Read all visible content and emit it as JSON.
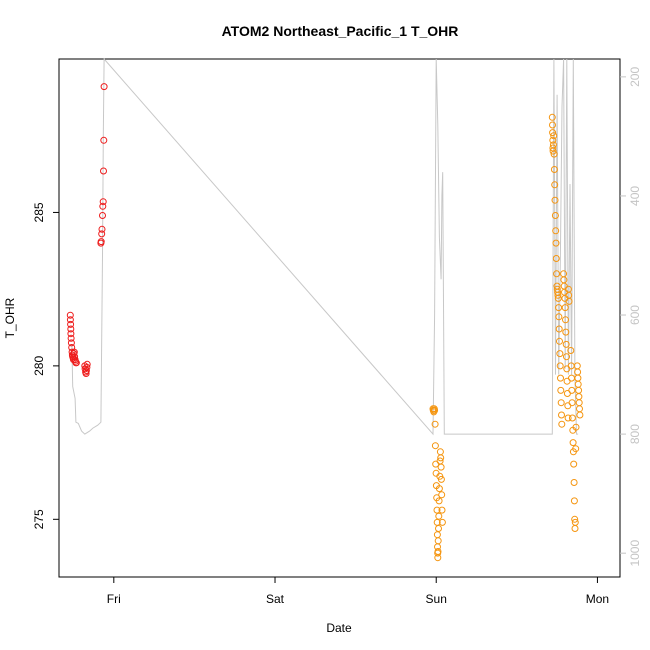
{
  "chart_data": {
    "type": "scatter",
    "title": "ATOM2 Northeast_Pacific_1 T_OHR",
    "xlabel": "Date",
    "ylabel": "T_OHR",
    "x_ticks": [
      "Fri",
      "Sat",
      "Sun",
      "Mon"
    ],
    "x_tick_values": [
      1.0,
      2.0,
      3.0,
      4.0
    ],
    "xlim": [
      0.66,
      4.14
    ],
    "ylim": [
      273.12,
      290.0
    ],
    "y_ticks": [
      275,
      280,
      285
    ],
    "y2_ticks": [
      200,
      400,
      600,
      800,
      1000
    ],
    "y2_ylim": [
      170,
      1040
    ],
    "colors": {
      "series_red": "#ee1c1c",
      "series_orange": "#f5950f",
      "pressure_line": "#c8c8c8",
      "axis": "#000000",
      "right_axis": "#c4c4c4"
    },
    "series": [
      {
        "color": "red",
        "points": [
          [
            0.73,
            281.65
          ],
          [
            0.731,
            281.5
          ],
          [
            0.732,
            281.35
          ],
          [
            0.733,
            281.2
          ],
          [
            0.734,
            281.05
          ],
          [
            0.735,
            280.9
          ],
          [
            0.737,
            280.75
          ],
          [
            0.739,
            280.6
          ],
          [
            0.741,
            280.45
          ],
          [
            0.743,
            280.35
          ],
          [
            0.745,
            280.3
          ],
          [
            0.748,
            280.25
          ],
          [
            0.75,
            280.2
          ],
          [
            0.752,
            280.4
          ],
          [
            0.755,
            280.45
          ],
          [
            0.757,
            280.3
          ],
          [
            0.76,
            280.2
          ],
          [
            0.762,
            280.15
          ],
          [
            0.765,
            280.1
          ],
          [
            0.768,
            280.1
          ],
          [
            0.82,
            280.0
          ],
          [
            0.822,
            279.9
          ],
          [
            0.825,
            279.8
          ],
          [
            0.828,
            279.75
          ],
          [
            0.83,
            279.85
          ],
          [
            0.833,
            279.95
          ],
          [
            0.835,
            280.05
          ],
          [
            0.92,
            284.0
          ],
          [
            0.922,
            284.05
          ],
          [
            0.925,
            284.3
          ],
          [
            0.927,
            284.45
          ],
          [
            0.93,
            284.9
          ],
          [
            0.932,
            285.2
          ],
          [
            0.934,
            285.35
          ],
          [
            0.936,
            286.35
          ],
          [
            0.938,
            287.35
          ],
          [
            0.94,
            289.1
          ]
        ]
      },
      {
        "color": "orange",
        "points": [
          [
            2.98,
            278.6
          ],
          [
            2.982,
            278.55
          ],
          [
            2.985,
            278.5
          ],
          [
            2.988,
            278.6
          ],
          [
            2.99,
            278.55
          ],
          [
            2.993,
            278.1
          ],
          [
            2.995,
            277.4
          ],
          [
            2.997,
            276.8
          ],
          [
            2.999,
            276.5
          ],
          [
            3.001,
            276.1
          ],
          [
            3.003,
            275.7
          ],
          [
            3.005,
            275.3
          ],
          [
            3.006,
            274.9
          ],
          [
            3.007,
            274.5
          ],
          [
            3.008,
            274.1
          ],
          [
            3.009,
            273.9
          ],
          [
            3.01,
            273.75
          ],
          [
            3.011,
            273.95
          ],
          [
            3.012,
            274.3
          ],
          [
            3.014,
            274.7
          ],
          [
            3.016,
            275.1
          ],
          [
            3.018,
            275.6
          ],
          [
            3.02,
            276.0
          ],
          [
            3.022,
            276.4
          ],
          [
            3.024,
            276.9
          ],
          [
            3.026,
            277.2
          ],
          [
            3.028,
            277.0
          ],
          [
            3.03,
            276.7
          ],
          [
            3.032,
            276.3
          ],
          [
            3.034,
            275.8
          ],
          [
            3.036,
            275.3
          ],
          [
            3.038,
            274.9
          ],
          [
            3.72,
            288.1
          ],
          [
            3.721,
            287.85
          ],
          [
            3.722,
            287.6
          ],
          [
            3.723,
            287.35
          ],
          [
            3.724,
            287.1
          ],
          [
            3.725,
            287.0
          ],
          [
            3.727,
            287.2
          ],
          [
            3.729,
            287.5
          ],
          [
            3.731,
            286.9
          ],
          [
            3.733,
            286.4
          ],
          [
            3.735,
            285.9
          ],
          [
            3.737,
            285.4
          ],
          [
            3.739,
            284.9
          ],
          [
            3.741,
            284.4
          ],
          [
            3.743,
            284.0
          ],
          [
            3.745,
            283.5
          ],
          [
            3.747,
            283.0
          ],
          [
            3.749,
            282.6
          ],
          [
            3.751,
            282.5
          ],
          [
            3.753,
            282.4
          ],
          [
            3.755,
            282.3
          ],
          [
            3.757,
            282.2
          ],
          [
            3.759,
            281.9
          ],
          [
            3.761,
            281.6
          ],
          [
            3.763,
            281.2
          ],
          [
            3.765,
            280.8
          ],
          [
            3.767,
            280.4
          ],
          [
            3.769,
            280.0
          ],
          [
            3.771,
            279.6
          ],
          [
            3.773,
            279.2
          ],
          [
            3.775,
            278.8
          ],
          [
            3.777,
            278.4
          ],
          [
            3.779,
            278.1
          ],
          [
            3.79,
            283.0
          ],
          [
            3.792,
            282.8
          ],
          [
            3.794,
            282.6
          ],
          [
            3.796,
            282.4
          ],
          [
            3.798,
            282.2
          ],
          [
            3.8,
            281.9
          ],
          [
            3.802,
            281.5
          ],
          [
            3.804,
            281.1
          ],
          [
            3.806,
            280.7
          ],
          [
            3.808,
            280.3
          ],
          [
            3.81,
            279.9
          ],
          [
            3.812,
            279.5
          ],
          [
            3.814,
            279.1
          ],
          [
            3.816,
            278.7
          ],
          [
            3.818,
            278.3
          ],
          [
            3.82,
            282.5
          ],
          [
            3.822,
            282.3
          ],
          [
            3.824,
            282.1
          ],
          [
            3.835,
            280.5
          ],
          [
            3.837,
            280.0
          ],
          [
            3.839,
            279.6
          ],
          [
            3.841,
            279.2
          ],
          [
            3.843,
            278.8
          ],
          [
            3.845,
            278.3
          ],
          [
            3.847,
            277.9
          ],
          [
            3.849,
            277.5
          ],
          [
            3.851,
            277.2
          ],
          [
            3.853,
            276.8
          ],
          [
            3.855,
            276.2
          ],
          [
            3.857,
            275.6
          ],
          [
            3.859,
            275.0
          ],
          [
            3.861,
            274.7
          ],
          [
            3.863,
            274.9
          ],
          [
            3.865,
            277.3
          ],
          [
            3.867,
            278.0
          ],
          [
            3.875,
            280.0
          ],
          [
            3.877,
            279.8
          ],
          [
            3.879,
            279.6
          ],
          [
            3.881,
            279.4
          ],
          [
            3.883,
            279.2
          ],
          [
            3.885,
            279.0
          ],
          [
            3.887,
            278.8
          ],
          [
            3.889,
            278.6
          ],
          [
            3.891,
            278.4
          ]
        ]
      }
    ],
    "pressure_line": [
      [
        0.74,
        650
      ],
      [
        0.745,
        720
      ],
      [
        0.76,
        740
      ],
      [
        0.765,
        780
      ],
      [
        0.78,
        782
      ],
      [
        0.8,
        795
      ],
      [
        0.82,
        800
      ],
      [
        0.85,
        795
      ],
      [
        0.87,
        790
      ],
      [
        0.9,
        785
      ],
      [
        0.92,
        780
      ],
      [
        0.93,
        500
      ],
      [
        0.935,
        300
      ],
      [
        0.94,
        170
      ],
      [
        2.98,
        800
      ],
      [
        2.99,
        600
      ],
      [
        3.0,
        170
      ],
      [
        3.01,
        280
      ],
      [
        3.02,
        470
      ],
      [
        3.03,
        540
      ],
      [
        3.035,
        400
      ],
      [
        3.04,
        360
      ],
      [
        3.05,
        800
      ],
      [
        3.72,
        800
      ],
      [
        3.73,
        170
      ],
      [
        3.74,
        700
      ],
      [
        3.75,
        230
      ],
      [
        3.76,
        700
      ],
      [
        3.77,
        500
      ],
      [
        3.78,
        250
      ],
      [
        3.79,
        170
      ],
      [
        3.8,
        690
      ],
      [
        3.81,
        170
      ],
      [
        3.82,
        700
      ],
      [
        3.83,
        380
      ],
      [
        3.84,
        700
      ],
      [
        3.85,
        170
      ],
      [
        3.86,
        700
      ],
      [
        3.87,
        800
      ],
      [
        3.875,
        800
      ],
      [
        3.88,
        800
      ]
    ]
  }
}
